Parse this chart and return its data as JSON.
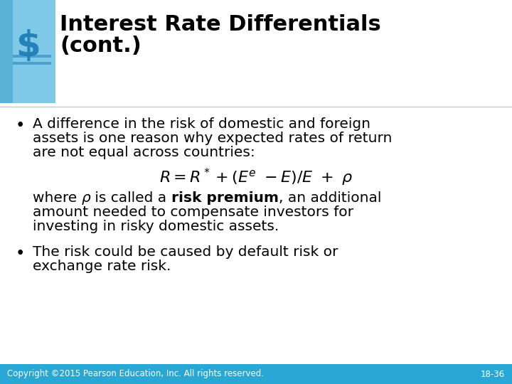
{
  "title_line1": "Interest Rate Differentials",
  "title_line2": "(cont.)",
  "title_fontsize": 22,
  "title_color": "#000000",
  "bg_color": "#ffffff",
  "footer_bg_color": "#2aa8d5",
  "footer_text": "Copyright ©2015 Pearson Education, Inc. All rights reserved.",
  "footer_slide": "18-36",
  "footer_fontsize": 8.5,
  "bullet1_line1": "A difference in the risk of domestic and foreign",
  "bullet1_line2": "assets is one reason why expected rates of return",
  "bullet1_line3": "are not equal across countries:",
  "formula_fontsize": 16,
  "where_line2": "amount needed to compensate investors for",
  "where_line3": "investing in risky domestic assets.",
  "bullet2_line1": "The risk could be caused by default risk or",
  "bullet2_line2": "exchange rate risk.",
  "body_fontsize": 14.5,
  "accent_color_dark": "#1a7ab5",
  "accent_color_light": "#7ec8e8",
  "accent_color_mid": "#4baad4"
}
